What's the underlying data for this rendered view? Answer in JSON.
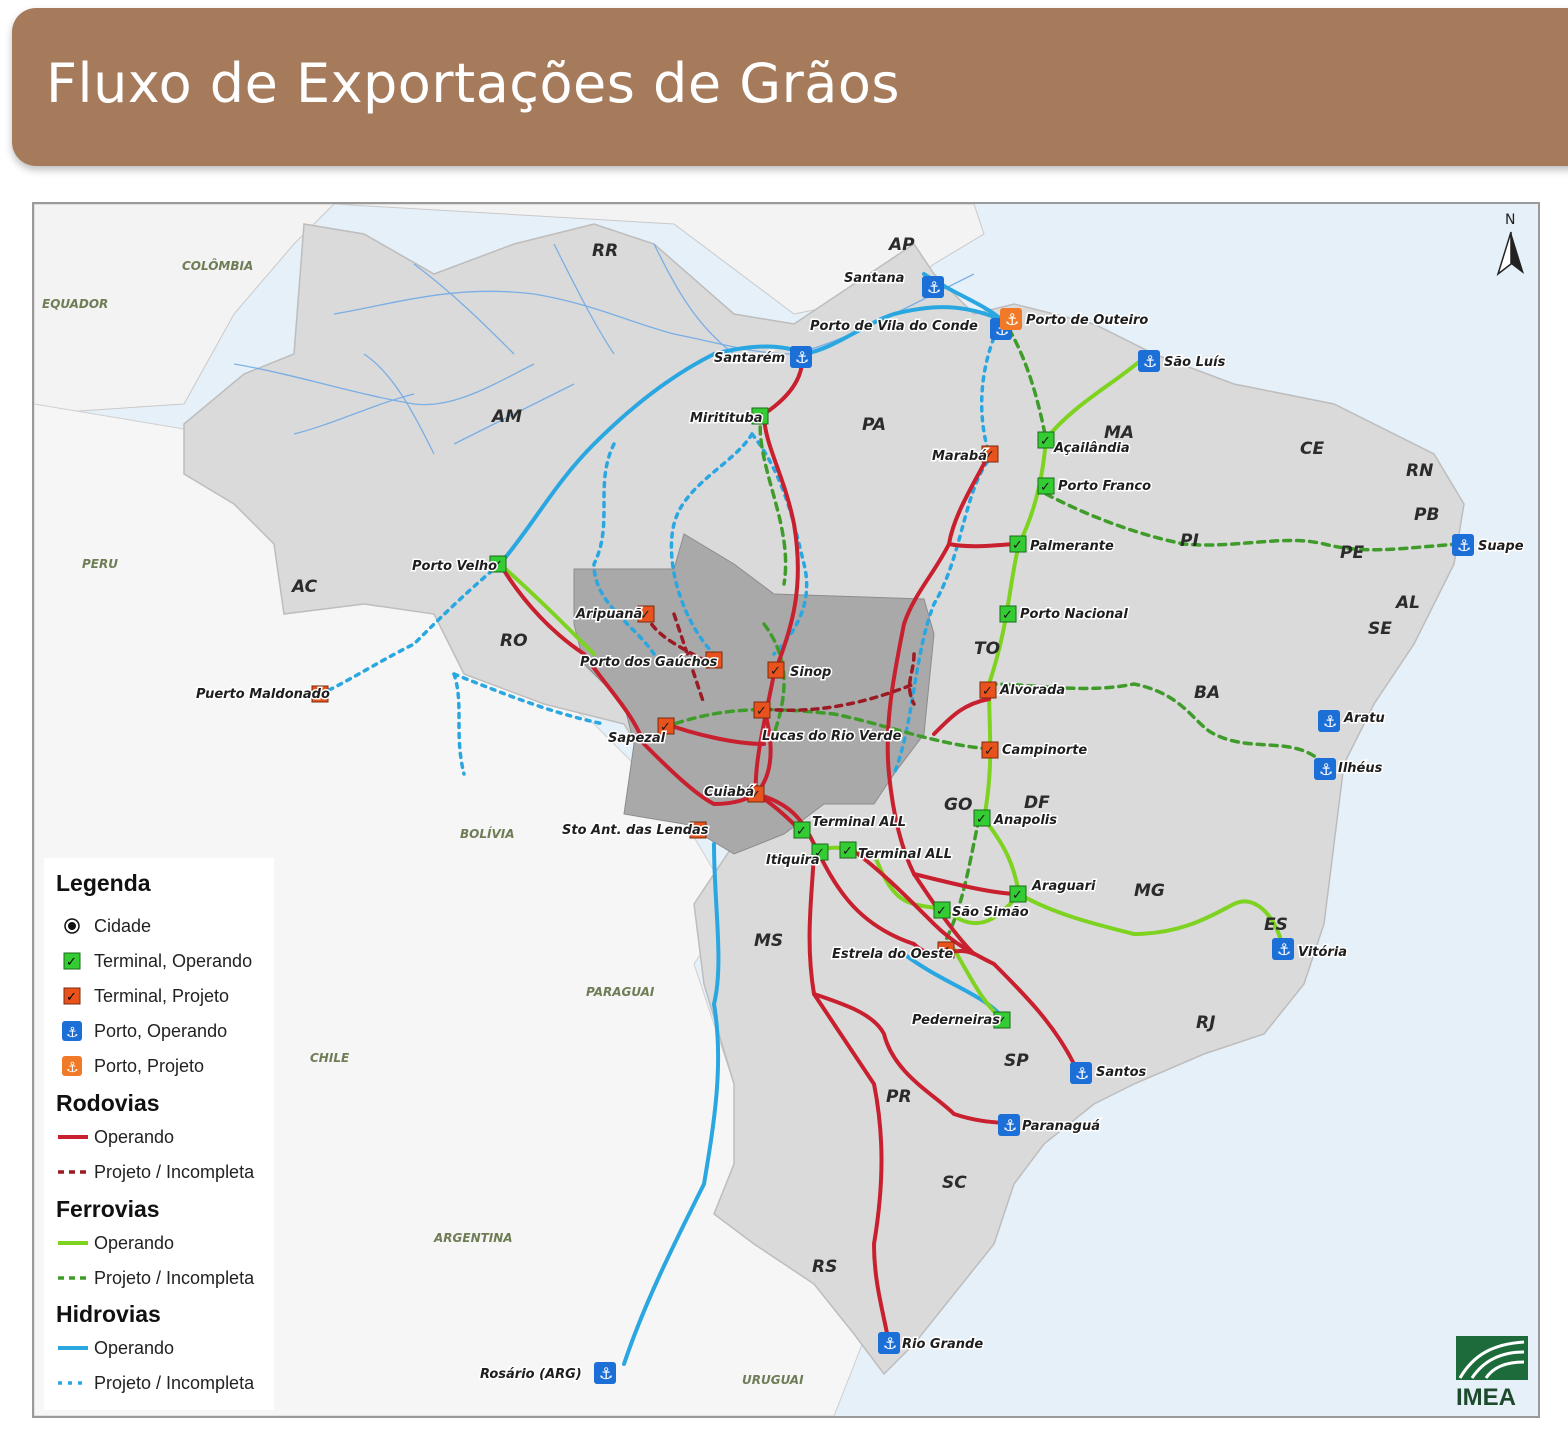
{
  "title": "Fluxo de Exportações de Grãos",
  "north_label": "N",
  "logo_text": "IMEA",
  "colors": {
    "banner": "#a67b5b",
    "road": "#c8202f",
    "rail": "#7ed321",
    "rail_project": "#3f9c2a",
    "water": "#2aa7e0",
    "terminal_operating": "#33cc33",
    "terminal_project": "#e8531d",
    "port_operating": "#1d6fd8",
    "port_project": "#f07a28",
    "mato_grosso": "#a9a9a9",
    "brazil": "#d9d9d9"
  },
  "countries": [
    "COLÔMBIA",
    "EQUADOR",
    "PERU",
    "BOLÍVIA",
    "CHILE",
    "PARAGUAI",
    "ARGENTINA",
    "URUGUAI"
  ],
  "states": [
    "RR",
    "AP",
    "AM",
    "PA",
    "MA",
    "CE",
    "RN",
    "PB",
    "PI",
    "PE",
    "AL",
    "SE",
    "AC",
    "RO",
    "TO",
    "BA",
    "GO",
    "DF",
    "MG",
    "ES",
    "MS",
    "SP",
    "RJ",
    "PR",
    "SC",
    "RS"
  ],
  "ports_operating": [
    "Santana",
    "Porto de Vila do Conde",
    "Santarém",
    "São Luís",
    "Suape",
    "Aratu",
    "Ilhéus",
    "Vitória",
    "Santos",
    "Paranaguá",
    "Rio Grande",
    "Rosário (ARG)"
  ],
  "ports_project": [
    "Porto de Outeiro"
  ],
  "terminals_operating": [
    "Miritituba",
    "Porto Velho",
    "Açailândia",
    "Porto Franco",
    "Palmerante",
    "Porto Nacional",
    "Anapolis",
    "Terminal ALL",
    "Terminal ALL",
    "Itiquira",
    "Araguari",
    "São Simão",
    "Pederneiras"
  ],
  "terminals_project": [
    "Marabá",
    "Aripuanã",
    "Porto dos Gaúchos",
    "Sinop",
    "Lucas do Rio Verde",
    "Sapezal",
    "Cuiabá",
    "Sto Ant. das Lendas",
    "Alvorada",
    "Campinorte",
    "Estrela do Oeste",
    "Puerto Maldonado"
  ],
  "legend": {
    "title": "Legenda",
    "cidade": "Cidade",
    "terminal_operando": "Terminal, Operando",
    "terminal_projeto": "Terminal, Projeto",
    "porto_operando": "Porto, Operando",
    "porto_projeto": "Porto, Projeto",
    "rodovias": "Rodovias",
    "ferrovias": "Ferrovias",
    "hidrovias": "Hidrovias",
    "operando": "Operando",
    "projeto_incompleta": "Projeto / Incompleta"
  }
}
